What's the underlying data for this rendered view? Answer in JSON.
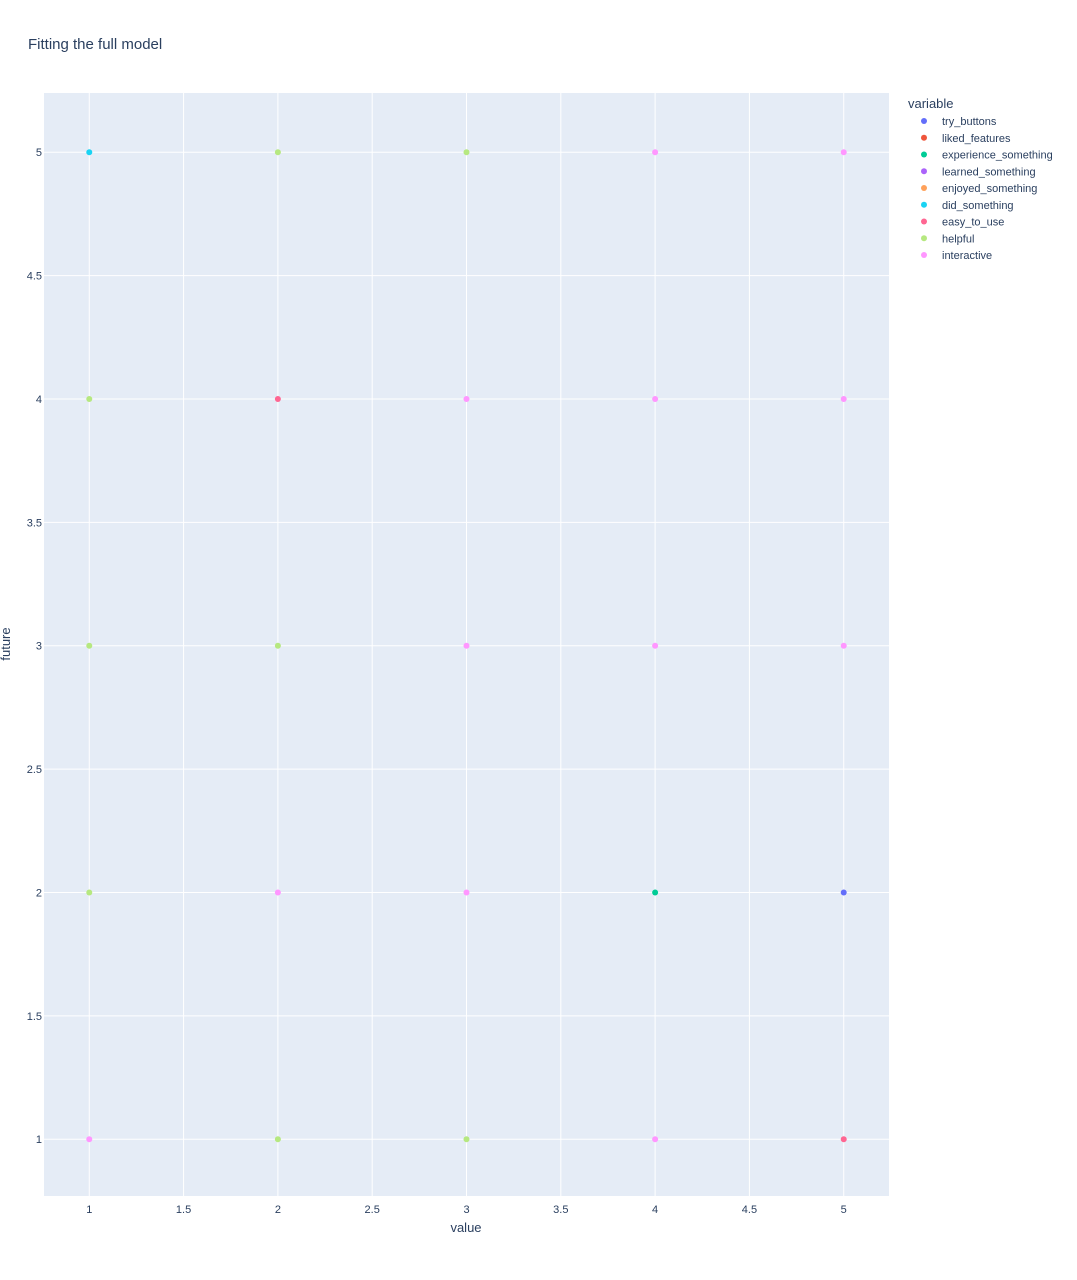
{
  "chart_data": {
    "type": "scatter",
    "title": "Fitting the full model",
    "xlabel": "value",
    "ylabel": "future",
    "xlim": [
      0.76,
      5.24
    ],
    "ylim": [
      0.77,
      5.24
    ],
    "xticks": [
      1,
      1.5,
      2,
      2.5,
      3,
      3.5,
      4,
      4.5,
      5
    ],
    "yticks": [
      1,
      1.5,
      2,
      2.5,
      3,
      3.5,
      4,
      4.5,
      5
    ],
    "xtick_labels": [
      "1",
      "1.5",
      "2",
      "2.5",
      "3",
      "3.5",
      "4",
      "4.5",
      "5"
    ],
    "ytick_labels": [
      "1",
      "1.5",
      "2",
      "2.5",
      "3",
      "3.5",
      "4",
      "4.5",
      "5"
    ],
    "grid": true,
    "plot_background": "#e5ecf6",
    "grid_color": "#ffffff",
    "text_color": "#2a3f5f",
    "legend": {
      "title": "variable",
      "position": "top-right outside"
    },
    "series": [
      {
        "name": "try_buttons",
        "color": "#636efa",
        "points": [
          [
            5,
            2
          ]
        ]
      },
      {
        "name": "liked_features",
        "color": "#EF553B",
        "points": []
      },
      {
        "name": "experience_something",
        "color": "#00cc96",
        "points": [
          [
            4,
            2
          ]
        ]
      },
      {
        "name": "learned_something",
        "color": "#ab63fa",
        "points": []
      },
      {
        "name": "enjoyed_something",
        "color": "#FFA15A",
        "points": []
      },
      {
        "name": "did_something",
        "color": "#19d3f3",
        "points": [
          [
            1,
            5
          ]
        ]
      },
      {
        "name": "easy_to_use",
        "color": "#FF6692",
        "points": [
          [
            2,
            4
          ],
          [
            5,
            1
          ]
        ]
      },
      {
        "name": "helpful",
        "color": "#B6E880",
        "points": [
          [
            2,
            5
          ],
          [
            3,
            5
          ],
          [
            1,
            4
          ],
          [
            1,
            3
          ],
          [
            2,
            3
          ],
          [
            1,
            2
          ],
          [
            2,
            1
          ],
          [
            3,
            1
          ]
        ]
      },
      {
        "name": "interactive",
        "color": "#FF97FF",
        "points": [
          [
            4,
            5
          ],
          [
            5,
            5
          ],
          [
            3,
            4
          ],
          [
            4,
            4
          ],
          [
            5,
            4
          ],
          [
            3,
            3
          ],
          [
            4,
            3
          ],
          [
            5,
            3
          ],
          [
            2,
            2
          ],
          [
            3,
            2
          ],
          [
            1,
            1
          ],
          [
            4,
            1
          ]
        ]
      }
    ]
  }
}
